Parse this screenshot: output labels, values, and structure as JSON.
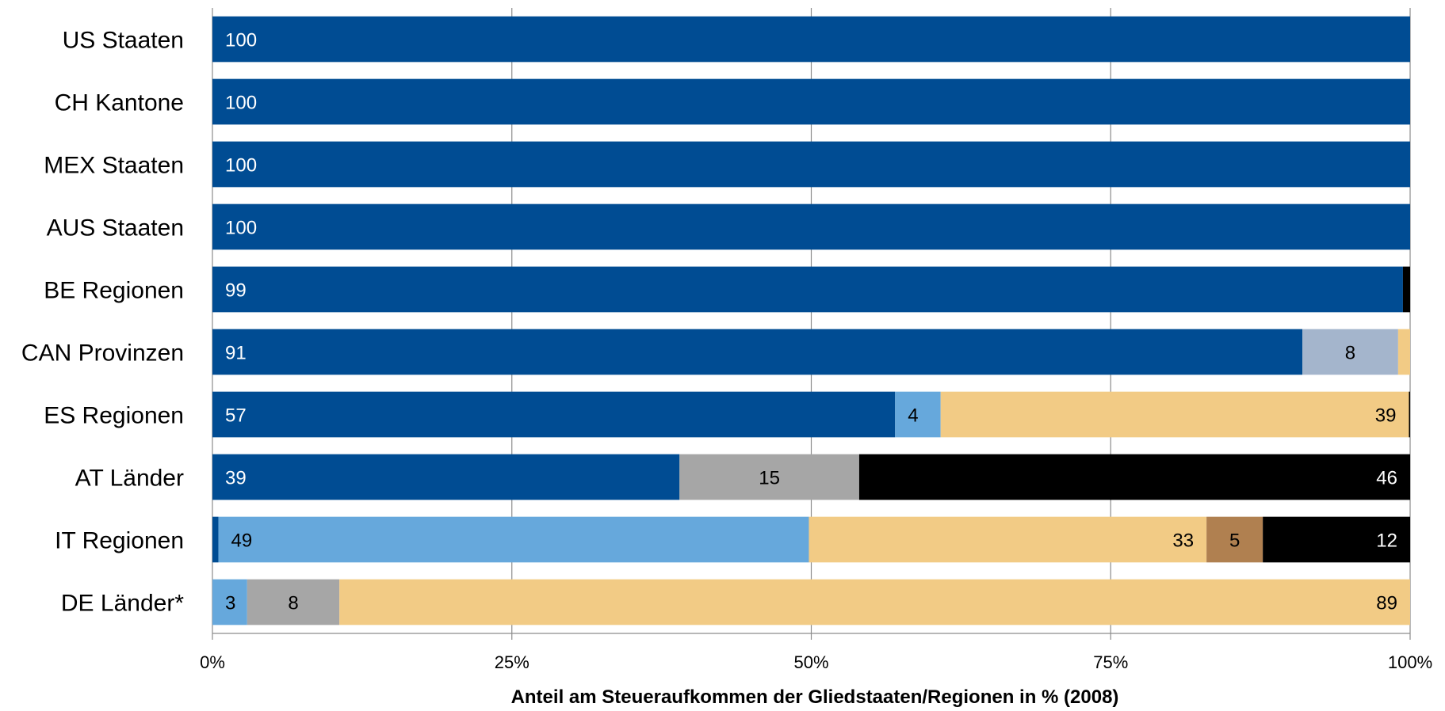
{
  "chart_data": {
    "type": "bar",
    "orientation": "horizontal",
    "stacked": "percent",
    "title": "",
    "xlabel": "Anteil am Steueraufkommen der Gliedstaaten/Regionen in % (2008)",
    "ylabel": "",
    "xlim": [
      0,
      100
    ],
    "x_ticks": [
      "0%",
      "25%",
      "50%",
      "75%",
      "100%"
    ],
    "grid": "vertical",
    "legend": "none",
    "categories": [
      "US Staaten",
      "CH Kantone",
      "MEX Staaten",
      "AUS Staaten",
      "BE Regionen",
      "CAN Provinzen",
      "ES Regionen",
      "AT Länder",
      "IT Regionen",
      "DE Länder*"
    ],
    "series": [
      {
        "color": "#004c93",
        "values": [
          100,
          100,
          100,
          100,
          99.4,
          91,
          57,
          39,
          0.5,
          0
        ],
        "labels": [
          "100",
          "100",
          "100",
          "100",
          "99",
          "91",
          "57",
          "39",
          "",
          ""
        ],
        "label_color": "#ffffff",
        "label_align": "left"
      },
      {
        "color": "#66a8dc",
        "values": [
          0,
          0,
          0,
          0,
          0,
          0,
          3.8,
          0,
          49.3,
          2.9
        ],
        "labels": [
          "",
          "",
          "",
          "",
          "",
          "",
          "4",
          "",
          "49",
          "3"
        ],
        "label_color": "#000000",
        "label_align": "left"
      },
      {
        "color": "#a4b5cc",
        "values": [
          0,
          0,
          0,
          0,
          0,
          8,
          0,
          0,
          0,
          0
        ],
        "labels": [
          "",
          "",
          "",
          "",
          "",
          "8",
          "",
          "",
          "",
          ""
        ],
        "label_color": "#000000",
        "label_align": "center"
      },
      {
        "color": "#a6a6a6",
        "values": [
          0,
          0,
          0,
          0,
          0,
          0,
          0,
          15,
          0,
          7.7
        ],
        "labels": [
          "",
          "",
          "",
          "",
          "",
          "",
          "",
          "15",
          "",
          "8"
        ],
        "label_color": "#000000",
        "label_align": "center"
      },
      {
        "color": "#f2cb85",
        "values": [
          0,
          0,
          0,
          0,
          0,
          1,
          39.1,
          0,
          33.2,
          89.4
        ],
        "labels": [
          "",
          "",
          "",
          "",
          "",
          "",
          "39",
          "",
          "33",
          "89"
        ],
        "label_color": "#000000",
        "label_align": "right"
      },
      {
        "color": "#b08050",
        "values": [
          0,
          0,
          0,
          0,
          0,
          0,
          0,
          0,
          4.7,
          0
        ],
        "labels": [
          "",
          "",
          "",
          "",
          "",
          "",
          "",
          "",
          "5",
          ""
        ],
        "label_color": "#000000",
        "label_align": "center"
      },
      {
        "color": "#000000",
        "values": [
          0,
          0,
          0,
          0,
          0.6,
          0,
          0.1,
          46,
          12.3,
          0
        ],
        "labels": [
          "",
          "",
          "",
          "",
          "",
          "",
          "",
          "46",
          "12",
          ""
        ],
        "label_color": "#ffffff",
        "label_align": "right"
      }
    ]
  }
}
